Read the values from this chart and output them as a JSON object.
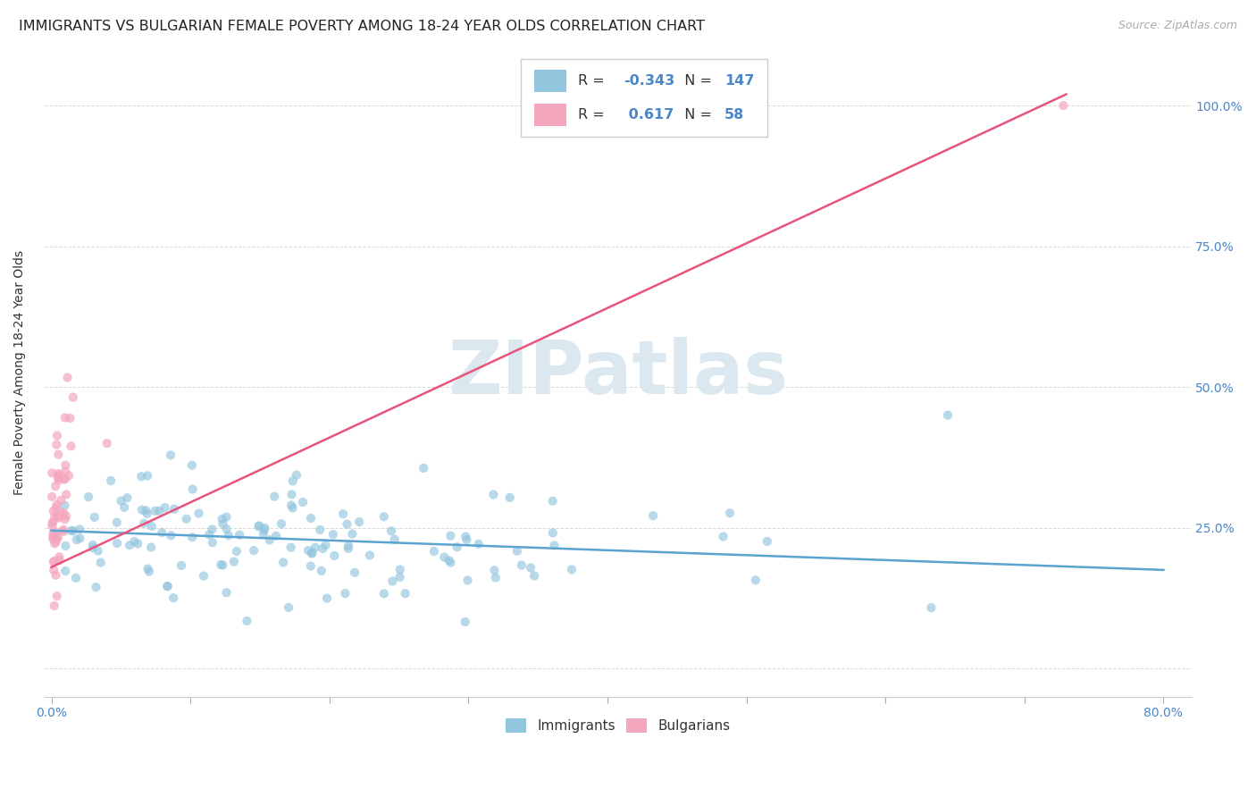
{
  "title": "IMMIGRANTS VS BULGARIAN FEMALE POVERTY AMONG 18-24 YEAR OLDS CORRELATION CHART",
  "source": "Source: ZipAtlas.com",
  "ylabel": "Female Poverty Among 18-24 Year Olds",
  "xlim": [
    -0.005,
    0.82
  ],
  "ylim": [
    -0.05,
    1.1
  ],
  "yticks": [
    0.0,
    0.25,
    0.5,
    0.75,
    1.0
  ],
  "ytick_labels": [
    "",
    "25.0%",
    "50.0%",
    "75.0%",
    "100.0%"
  ],
  "xtick_positions": [
    0.0,
    0.1,
    0.2,
    0.3,
    0.4,
    0.5,
    0.6,
    0.7,
    0.8
  ],
  "xtick_labels": [
    "0.0%",
    "",
    "",
    "",
    "",
    "",
    "",
    "",
    "80.0%"
  ],
  "immigrants_R": -0.343,
  "immigrants_N": 147,
  "bulgarians_R": 0.617,
  "bulgarians_N": 58,
  "immigrants_color": "#92c5de",
  "bulgarians_color": "#f4a6bc",
  "immigrants_line_color": "#5ba3d0",
  "bulgarians_line_color": "#e8547a",
  "background_color": "#ffffff",
  "watermark_text": "ZIPatlas",
  "watermark_color": "#dce8f0",
  "title_fontsize": 11.5,
  "axis_label_fontsize": 10,
  "tick_fontsize": 10,
  "source_fontsize": 9,
  "imm_line_x0": 0.0,
  "imm_line_x1": 0.8,
  "imm_line_y0": 0.245,
  "imm_line_y1": 0.175,
  "bul_line_x0": 0.0,
  "bul_line_x1": 0.73,
  "bul_line_y0": 0.18,
  "bul_line_y1": 1.02,
  "legend_imm_text_R": "R = ",
  "legend_imm_val_R": "-0.343",
  "legend_imm_text_N": "  N = ",
  "legend_imm_val_N": "147",
  "legend_bul_text_R": "R =  ",
  "legend_bul_val_R": "0.617",
  "legend_bul_text_N": "  N = ",
  "legend_bul_val_N": "58"
}
